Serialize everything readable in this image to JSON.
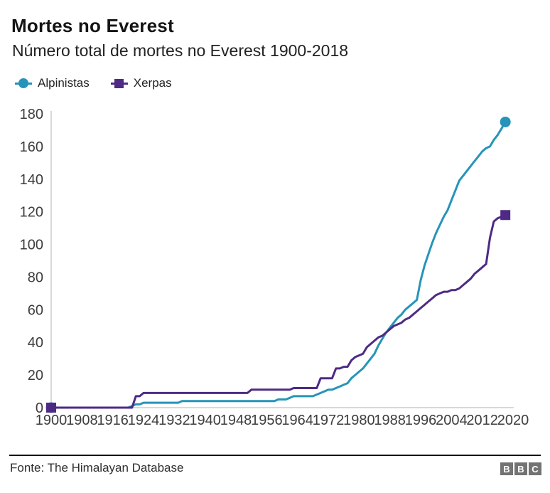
{
  "header": {
    "title": "Mortes no Everest",
    "subtitle": "Número total de mortes no Everest 1900-2018"
  },
  "legend": [
    {
      "label": "Alpinistas",
      "marker": "circle",
      "color": "#2694b8"
    },
    {
      "label": "Xerpas",
      "marker": "square",
      "color": "#4e2a84"
    }
  ],
  "footer": {
    "source": "Fonte: The Himalayan Database",
    "logo_letters": [
      "B",
      "B",
      "C"
    ]
  },
  "colors": {
    "alpinistas": "#2694b8",
    "xerpas": "#4e2a84",
    "axis_line": "#cccccc",
    "axis_text": "#3d3d3d"
  },
  "chart_data": {
    "type": "line",
    "title": "Mortes no Everest",
    "subtitle": "Número total de mortes no Everest 1900-2018",
    "xlabel": "",
    "ylabel": "",
    "xlim": [
      1900,
      2020
    ],
    "ylim": [
      0,
      180
    ],
    "x_ticks": [
      1900,
      1908,
      1916,
      1924,
      1932,
      1940,
      1948,
      1956,
      1964,
      1972,
      1980,
      1988,
      1996,
      2004,
      2012,
      2020
    ],
    "y_ticks": [
      0,
      20,
      40,
      60,
      80,
      100,
      120,
      140,
      160,
      180
    ],
    "grid": false,
    "legend_position": "top-left",
    "series": [
      {
        "name": "Alpinistas",
        "color": "#2694b8",
        "marker": "circle",
        "end_value": 175,
        "points": [
          [
            1900,
            0
          ],
          [
            1920,
            0
          ],
          [
            1921,
            1
          ],
          [
            1922,
            2
          ],
          [
            1923,
            2
          ],
          [
            1924,
            3
          ],
          [
            1933,
            3
          ],
          [
            1934,
            4
          ],
          [
            1958,
            4
          ],
          [
            1959,
            5
          ],
          [
            1961,
            5
          ],
          [
            1962,
            6
          ],
          [
            1963,
            7
          ],
          [
            1968,
            7
          ],
          [
            1969,
            8
          ],
          [
            1970,
            9
          ],
          [
            1971,
            10
          ],
          [
            1972,
            11
          ],
          [
            1973,
            11
          ],
          [
            1974,
            12
          ],
          [
            1975,
            13
          ],
          [
            1976,
            14
          ],
          [
            1977,
            15
          ],
          [
            1978,
            18
          ],
          [
            1979,
            20
          ],
          [
            1980,
            22
          ],
          [
            1981,
            24
          ],
          [
            1982,
            27
          ],
          [
            1983,
            30
          ],
          [
            1984,
            33
          ],
          [
            1985,
            38
          ],
          [
            1986,
            42
          ],
          [
            1987,
            46
          ],
          [
            1988,
            49
          ],
          [
            1989,
            52
          ],
          [
            1990,
            55
          ],
          [
            1991,
            57
          ],
          [
            1992,
            60
          ],
          [
            1993,
            62
          ],
          [
            1994,
            64
          ],
          [
            1995,
            66
          ],
          [
            1996,
            78
          ],
          [
            1997,
            87
          ],
          [
            1998,
            94
          ],
          [
            1999,
            101
          ],
          [
            2000,
            107
          ],
          [
            2001,
            112
          ],
          [
            2002,
            117
          ],
          [
            2003,
            121
          ],
          [
            2004,
            127
          ],
          [
            2005,
            133
          ],
          [
            2006,
            139
          ],
          [
            2007,
            142
          ],
          [
            2008,
            145
          ],
          [
            2009,
            148
          ],
          [
            2010,
            151
          ],
          [
            2011,
            154
          ],
          [
            2012,
            157
          ],
          [
            2013,
            159
          ],
          [
            2014,
            160
          ],
          [
            2015,
            164
          ],
          [
            2016,
            167
          ],
          [
            2017,
            171
          ],
          [
            2018,
            175
          ]
        ]
      },
      {
        "name": "Xerpas",
        "color": "#4e2a84",
        "marker": "square",
        "end_value": 118,
        "points": [
          [
            1900,
            0
          ],
          [
            1921,
            0
          ],
          [
            1922,
            7
          ],
          [
            1923,
            7
          ],
          [
            1924,
            9
          ],
          [
            1951,
            9
          ],
          [
            1952,
            11
          ],
          [
            1962,
            11
          ],
          [
            1963,
            12
          ],
          [
            1969,
            12
          ],
          [
            1970,
            18
          ],
          [
            1973,
            18
          ],
          [
            1974,
            24
          ],
          [
            1975,
            24
          ],
          [
            1976,
            25
          ],
          [
            1977,
            25
          ],
          [
            1978,
            29
          ],
          [
            1979,
            31
          ],
          [
            1980,
            32
          ],
          [
            1981,
            33
          ],
          [
            1982,
            37
          ],
          [
            1983,
            39
          ],
          [
            1984,
            41
          ],
          [
            1985,
            43
          ],
          [
            1986,
            44
          ],
          [
            1987,
            46
          ],
          [
            1988,
            48
          ],
          [
            1989,
            50
          ],
          [
            1990,
            51
          ],
          [
            1991,
            52
          ],
          [
            1992,
            54
          ],
          [
            1993,
            55
          ],
          [
            1994,
            57
          ],
          [
            1995,
            59
          ],
          [
            1996,
            61
          ],
          [
            1997,
            63
          ],
          [
            1998,
            65
          ],
          [
            1999,
            67
          ],
          [
            2000,
            69
          ],
          [
            2001,
            70
          ],
          [
            2002,
            71
          ],
          [
            2003,
            71
          ],
          [
            2004,
            72
          ],
          [
            2005,
            72
          ],
          [
            2006,
            73
          ],
          [
            2007,
            75
          ],
          [
            2008,
            77
          ],
          [
            2009,
            79
          ],
          [
            2010,
            82
          ],
          [
            2011,
            84
          ],
          [
            2012,
            86
          ],
          [
            2013,
            88
          ],
          [
            2014,
            104
          ],
          [
            2015,
            114
          ],
          [
            2016,
            116
          ],
          [
            2017,
            117
          ],
          [
            2018,
            118
          ]
        ]
      }
    ]
  }
}
